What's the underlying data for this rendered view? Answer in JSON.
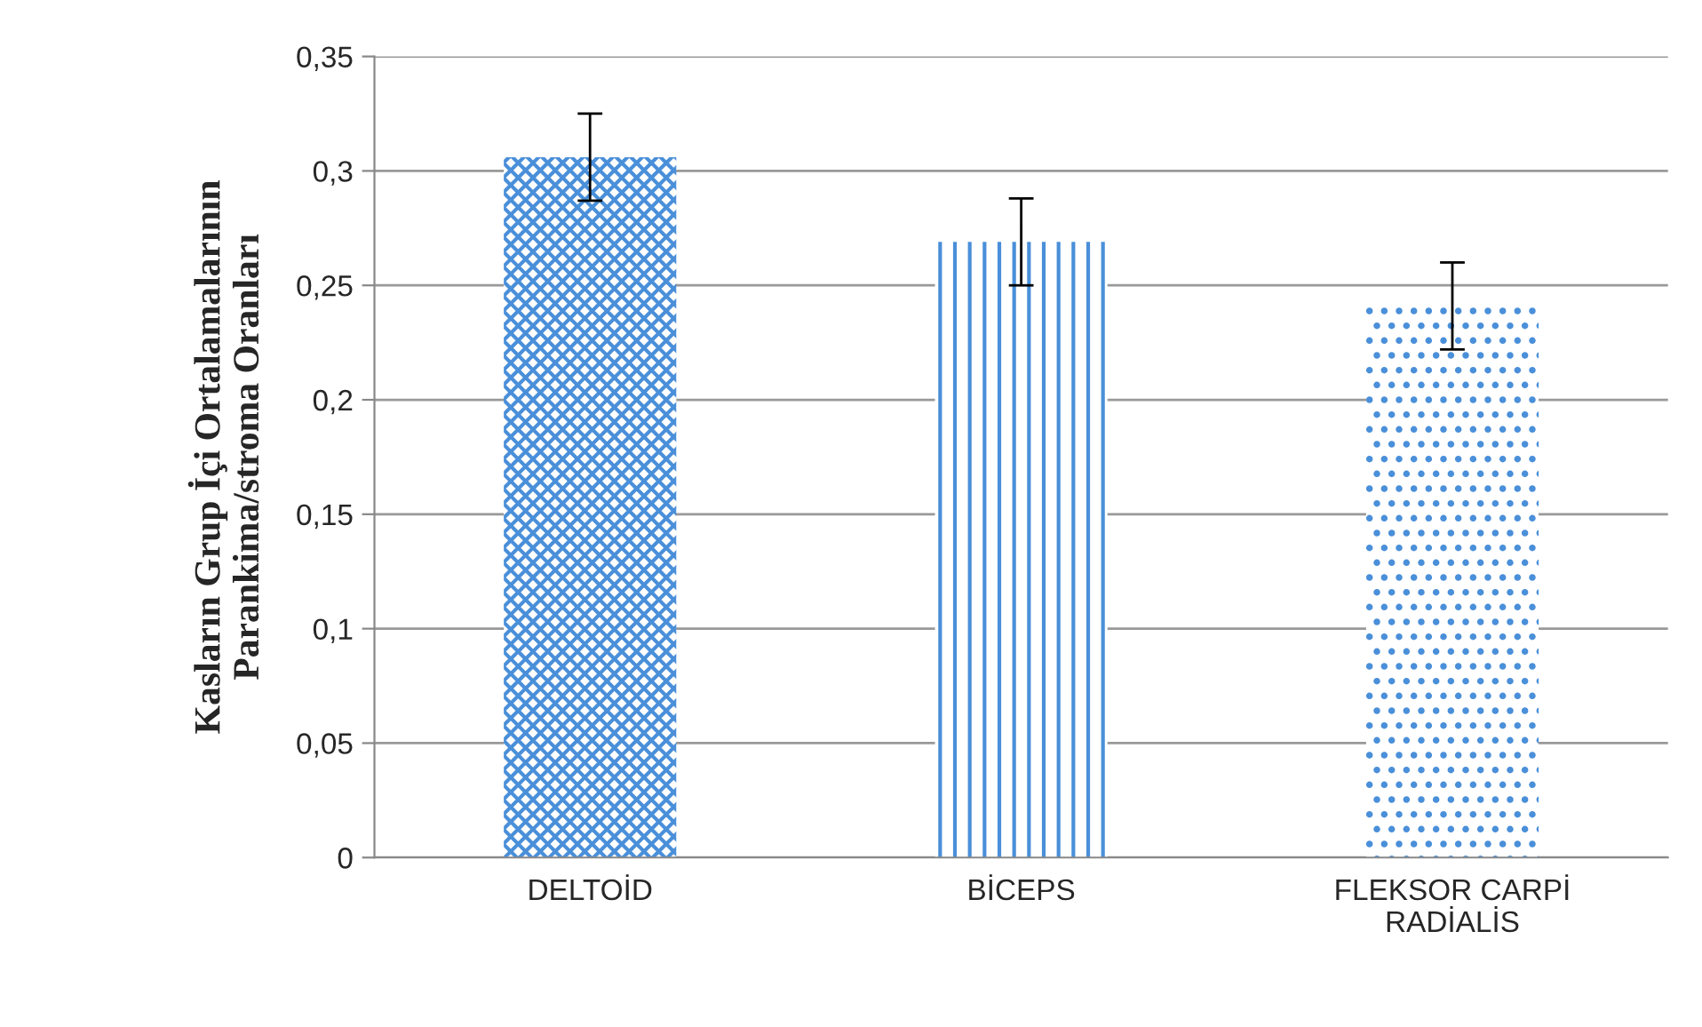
{
  "chart_data": {
    "type": "bar",
    "ylabel": "Kasların Grup İçi Ortalamalarının\nParankima/stroma Oranları",
    "categories": [
      "DELTOİD",
      "BİCEPS",
      "FLEKSOR CARPİ\nRADİALİS"
    ],
    "values": [
      0.306,
      0.269,
      0.241
    ],
    "errors": [
      0.019,
      0.019,
      0.019
    ],
    "color": "#4a8fd9",
    "ylim": [
      0,
      0.35
    ],
    "yticks": [
      0,
      {
        "value": 0.05,
        "label": "0,05"
      },
      {
        "value": 0.1,
        "label": "0,1"
      },
      {
        "value": 0.15,
        "label": "0,15"
      },
      {
        "value": 0.2,
        "label": "0,2"
      },
      {
        "value": 0.25,
        "label": "0,25"
      },
      {
        "value": 0.3,
        "label": "0,3"
      },
      {
        "value": 0.35,
        "label": "0,35"
      }
    ],
    "grid": "y",
    "legend": false
  }
}
